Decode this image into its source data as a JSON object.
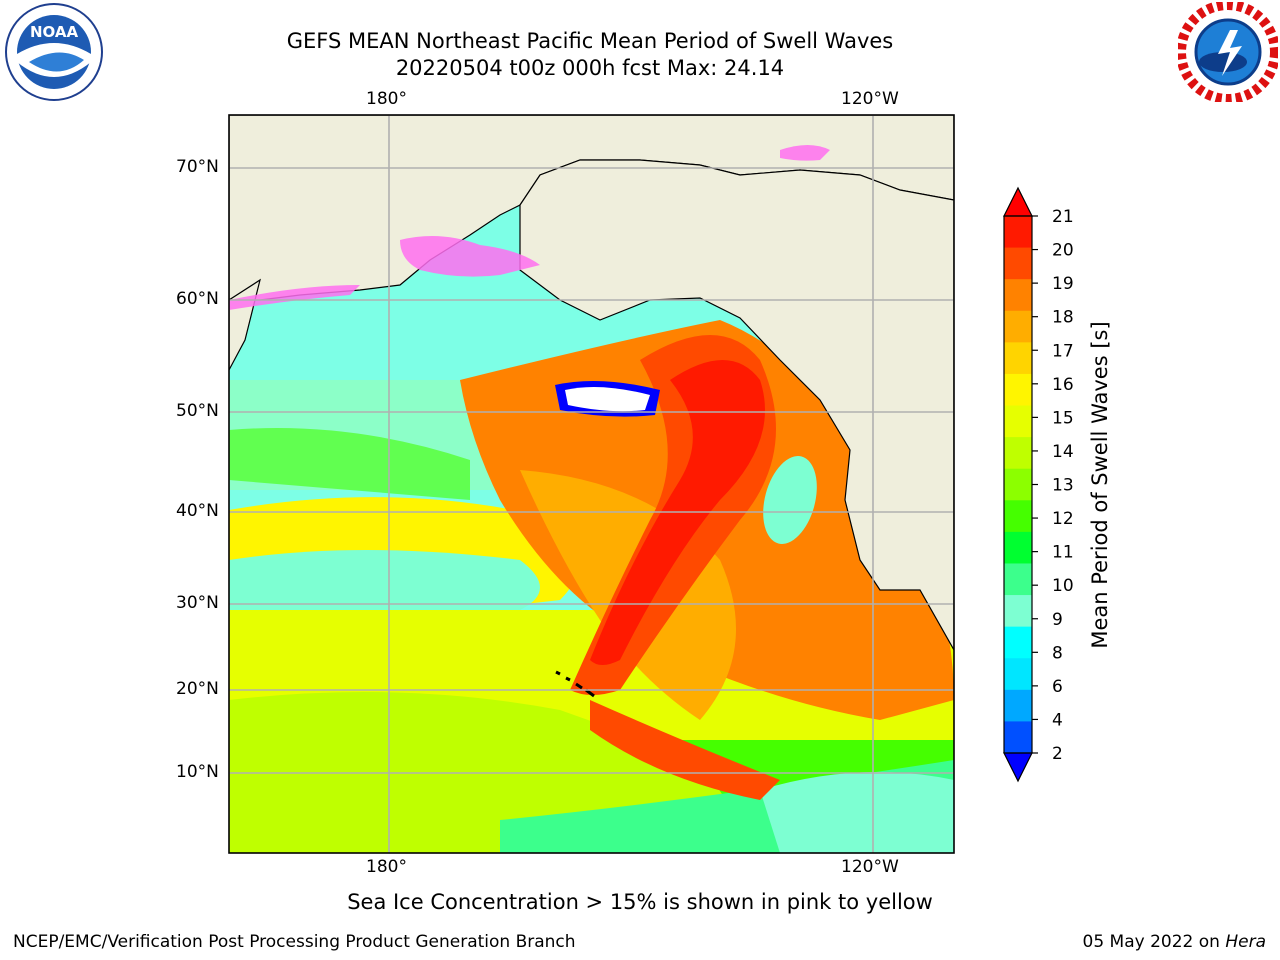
{
  "header": {
    "title_line1": "GEFS MEAN Northeast Pacific Mean Period of Swell Waves",
    "title_line2": "20220504 t00z 000h fcst   Max: 24.14"
  },
  "logos": {
    "left": {
      "text": "NOAA",
      "ring_text": "NATIONAL OCEANIC AND ATMOSPHERIC ADMINISTRATION · U.S. DEPARTMENT OF COMMERCE"
    },
    "right": {
      "ring_text": "NATIONAL WEATHER SERVICE"
    }
  },
  "map": {
    "top_lon_labels": [
      "180°",
      "120°W"
    ],
    "bottom_lon_labels": [
      "180°",
      "120°W"
    ],
    "lat_labels": [
      "70°N",
      "60°N",
      "50°N",
      "40°N",
      "30°N",
      "20°N",
      "10°N"
    ],
    "colors": {
      "ocean": "#7dffe6",
      "land": "#efeedc",
      "coast": "#000000",
      "grid": "#b0b0b0"
    }
  },
  "colorbar": {
    "label": "Mean Period of Swell Waves [s]",
    "ticks": [
      "21",
      "20",
      "19",
      "18",
      "17",
      "16",
      "15",
      "14",
      "13",
      "12",
      "11",
      "10",
      "9",
      "8",
      "6",
      "4",
      "2"
    ],
    "colors_top_to_bottom": [
      "#ff1a00",
      "#ff4a00",
      "#ff8200",
      "#ffad00",
      "#ffd400",
      "#fff500",
      "#e6ff00",
      "#bfff00",
      "#8cff00",
      "#45ff00",
      "#00ff30",
      "#3cff8c",
      "#7dffd2",
      "#00ffff",
      "#00e6ff",
      "#00a8ff",
      "#0050ff"
    ],
    "extend_over_color": "#ff0000",
    "extend_under_color": "#0000ff"
  },
  "caption": "Sea Ice Concentration > 15% is shown in pink to yellow",
  "footer": {
    "left": "NCEP/EMC/Verification Post Processing Product Generation Branch",
    "right_prefix": "05 May 2022 on ",
    "right_machine": "Hera"
  }
}
